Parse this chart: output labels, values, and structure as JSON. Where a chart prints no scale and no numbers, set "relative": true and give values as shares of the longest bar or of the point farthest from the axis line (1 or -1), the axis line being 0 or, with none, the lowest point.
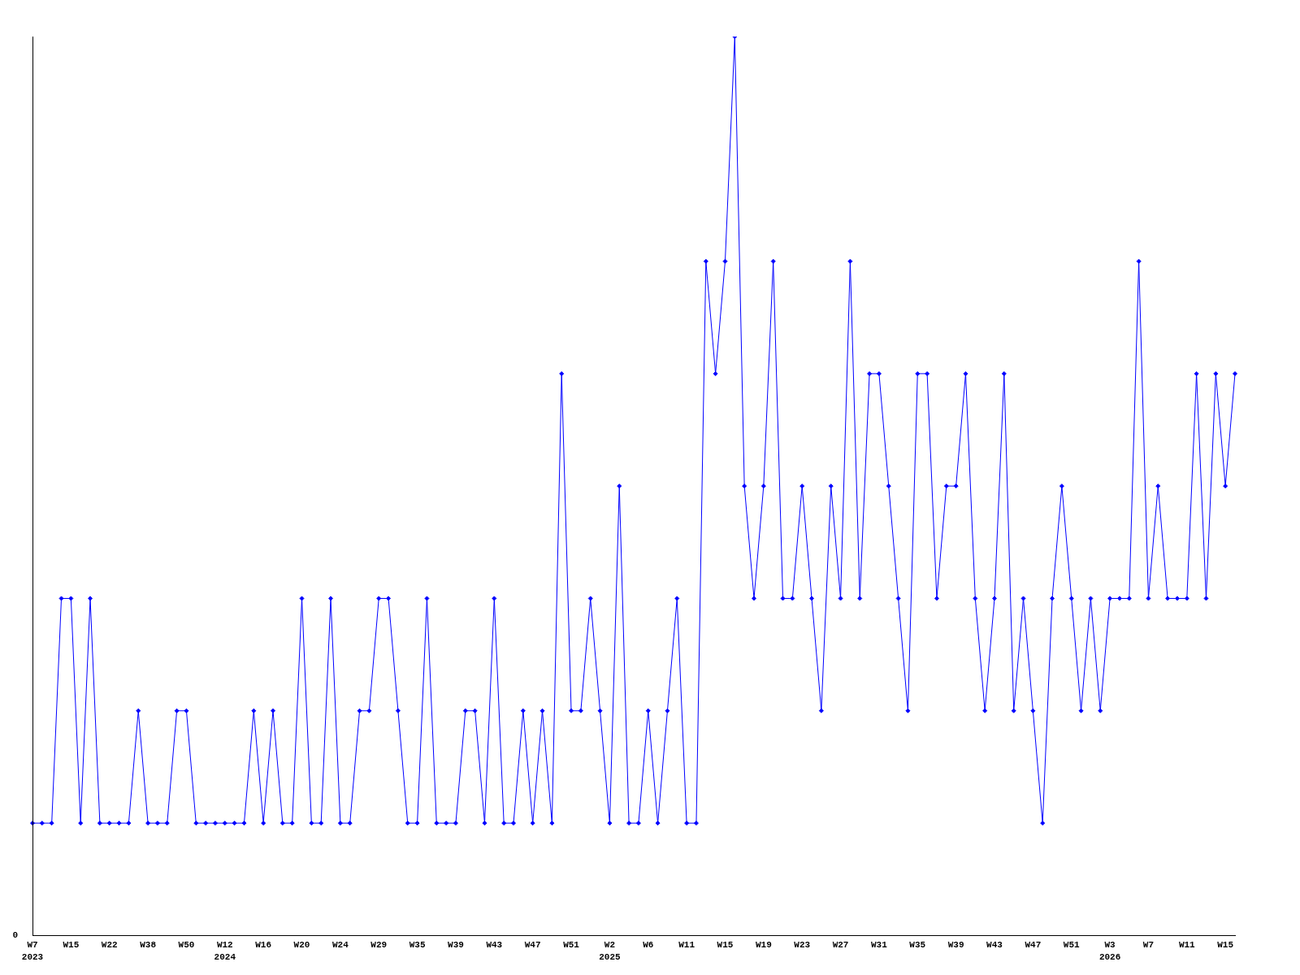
{
  "chart_data": {
    "type": "line",
    "relative": true,
    "color": "#0000ff",
    "marker": "diamond",
    "grid": false,
    "legend": false,
    "annotations": [
      "0"
    ],
    "categories": [
      "W7\n2023",
      null,
      null,
      null,
      "W15",
      null,
      null,
      null,
      "W22",
      null,
      null,
      null,
      "W38",
      null,
      null,
      null,
      "W50",
      null,
      null,
      null,
      "W12\n2024",
      null,
      null,
      null,
      "W16",
      null,
      null,
      null,
      "W20",
      null,
      null,
      null,
      "W24",
      null,
      null,
      null,
      "W29",
      null,
      null,
      null,
      "W35",
      null,
      null,
      null,
      "W39",
      null,
      null,
      null,
      "W43",
      null,
      null,
      null,
      "W47",
      null,
      null,
      null,
      "W51",
      null,
      null,
      null,
      "W2\n2025",
      null,
      null,
      null,
      "W6",
      null,
      null,
      null,
      "W11",
      null,
      null,
      null,
      "W15",
      null,
      null,
      null,
      "W19",
      null,
      null,
      null,
      "W23",
      null,
      null,
      null,
      "W27",
      null,
      null,
      null,
      "W31",
      null,
      null,
      null,
      "W35",
      null,
      null,
      null,
      "W39",
      null,
      null,
      null,
      "W43",
      null,
      null,
      null,
      "W47",
      null,
      null,
      null,
      "W51",
      null,
      null,
      null,
      "W3\n2026",
      null,
      null,
      null,
      "W7",
      null,
      null,
      null,
      "W11",
      null,
      null,
      null,
      "W15",
      null
    ],
    "values": [
      0.125,
      0.125,
      0.125,
      0.375,
      0.375,
      0.125,
      0.375,
      0.125,
      0.125,
      0.125,
      0.125,
      0.25,
      0.125,
      0.125,
      0.125,
      0.25,
      0.25,
      0.125,
      0.125,
      0.125,
      0.125,
      0.125,
      0.125,
      0.25,
      0.125,
      0.25,
      0.125,
      0.125,
      0.375,
      0.125,
      0.125,
      0.375,
      0.125,
      0.125,
      0.25,
      0.25,
      0.375,
      0.375,
      0.25,
      0.125,
      0.125,
      0.375,
      0.125,
      0.125,
      0.125,
      0.25,
      0.25,
      0.125,
      0.375,
      0.125,
      0.125,
      0.25,
      0.125,
      0.25,
      0.125,
      0.625,
      0.25,
      0.25,
      0.375,
      0.25,
      0.125,
      0.5,
      0.125,
      0.125,
      0.25,
      0.125,
      0.25,
      0.375,
      0.125,
      0.125,
      0.75,
      0.625,
      0.75,
      1,
      0.5,
      0.375,
      0.5,
      0.75,
      0.375,
      0.375,
      0.5,
      0.375,
      0.25,
      0.5,
      0.375,
      0.75,
      0.375,
      0.625,
      0.625,
      0.5,
      0.375,
      0.25,
      0.625,
      0.625,
      0.375,
      0.5,
      0.5,
      0.625,
      0.375,
      0.25,
      0.375,
      0.625,
      0.25,
      0.375,
      0.25,
      0.125,
      0.375,
      0.5,
      0.375,
      0.25,
      0.375,
      0.25,
      0.375,
      0.375,
      0.375,
      0.75,
      0.375,
      0.5,
      0.375,
      0.375,
      0.375,
      0.625,
      0.375,
      0.625,
      0.5,
      0.625
    ]
  }
}
